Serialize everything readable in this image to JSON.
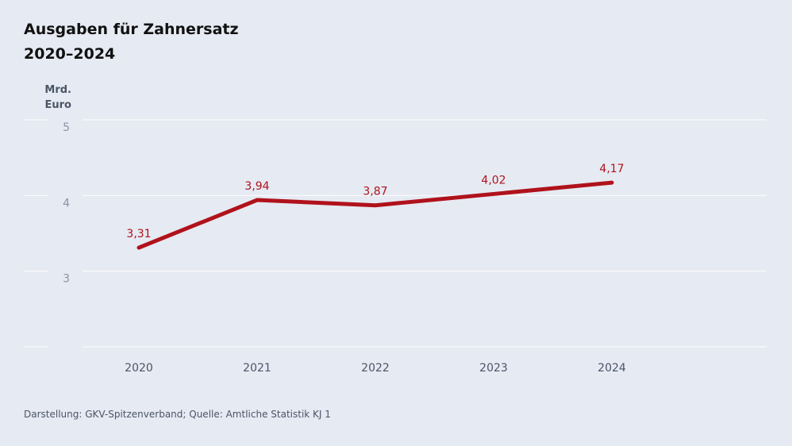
{
  "chart_data": {
    "type": "line",
    "title": "Ausgaben für Zahnersatz",
    "subtitle": "2020–2024",
    "y_label": "Mrd. Euro",
    "categories": [
      "2020",
      "2021",
      "2022",
      "2023",
      "2024"
    ],
    "series": [
      {
        "name": "Ausgaben für Zahnersatz",
        "color": "#b0121c",
        "values": [
          3.31,
          3.94,
          3.87,
          4.02,
          4.17
        ],
        "value_labels": [
          "3,31",
          "3,94",
          "3,87",
          "4,02",
          "4,17"
        ]
      }
    ],
    "ylim": [
      2,
      5
    ],
    "yticks": [
      3,
      4,
      5
    ],
    "grid": true,
    "source": "Darstellung: GKV-Spitzenverband; Quelle: Amtliche Statistik KJ 1"
  }
}
